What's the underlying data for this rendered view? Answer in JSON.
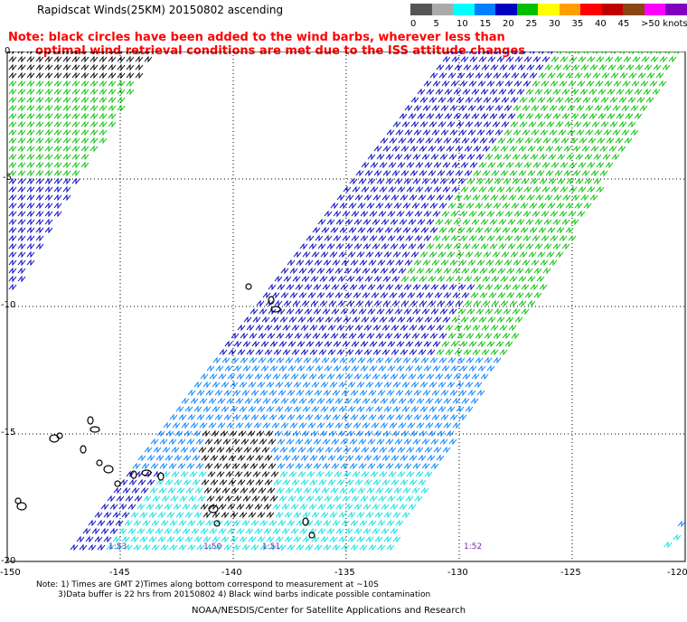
{
  "title": "Rapidscat Winds(25KM) 20150802 ascending",
  "note_line1": "Note: black circles have been added to the wind barbs, wherever less than",
  "note_line2": "optimal wind retrieval conditions are met due to the ISS attitude changes",
  "legend": {
    "labels": [
      "0",
      "5",
      "10",
      "15",
      "20",
      "25",
      "30",
      "35",
      "40",
      "45",
      ">50 knots"
    ],
    "colors": [
      "#555555",
      "#aaaaaa",
      "#00ffff",
      "#0080ff",
      "#0000c0",
      "#00c000",
      "#ffff00",
      "#ffa000",
      "#ff0000",
      "#c00000",
      "#8b4513",
      "#ff00ff",
      "#8000c0"
    ]
  },
  "axes": {
    "lat_labels": [
      "0",
      "-5",
      "-10",
      "-15",
      "-20"
    ],
    "lon_labels": [
      "-150",
      "-145",
      "-140",
      "-135",
      "-130",
      "-125",
      "-120"
    ]
  },
  "pass_times": [
    "1:53",
    "1:50",
    "1:51",
    "1:52"
  ],
  "footnote_line1": "Note: 1) Times are GMT 2)Times along bottom correspond to measurement at ~10S",
  "footnote_line2": "3)Data buffer is 22 hrs from 20150802 4) Black wind barbs indicate possible contamination",
  "credit": "NOAA/NESDIS/Center for Satellite Applications and Research",
  "map_data": {
    "lon_range": [
      -150,
      -120
    ],
    "lat_range": [
      -20,
      0
    ],
    "barb_colors": {
      "calm": "#00e0e0",
      "light": "#0080ff",
      "moderate": "#0000c0",
      "fresh": "#00c000",
      "contaminated": "#000000"
    }
  }
}
